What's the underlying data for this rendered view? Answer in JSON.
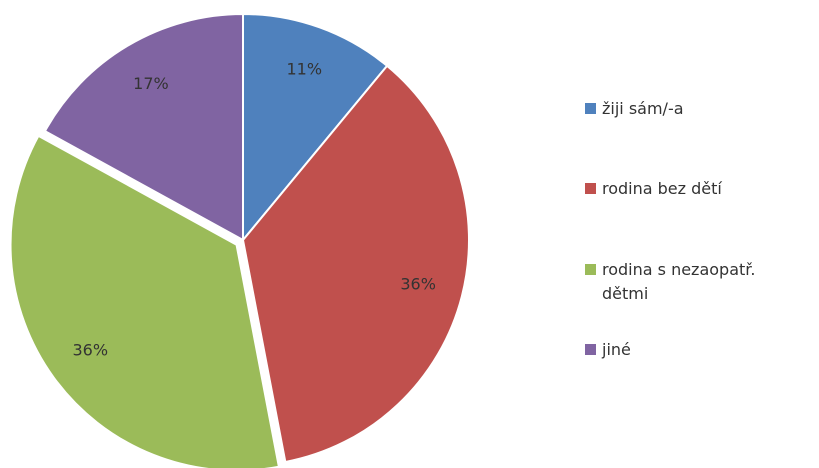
{
  "chart_data": {
    "type": "pie",
    "categories": [
      "žiji sám/-a",
      "rodina bez dětí",
      "rodina s nezaopatř. dětmi",
      "jiné"
    ],
    "values": [
      11,
      36,
      36,
      17
    ],
    "value_labels": [
      "11%",
      "36%",
      "36%",
      "17%"
    ],
    "colors": [
      "#4f81bd",
      "#c0504d",
      "#9bbb59",
      "#8064a2"
    ],
    "exploded": [
      false,
      false,
      true,
      false
    ],
    "legend": "right"
  }
}
